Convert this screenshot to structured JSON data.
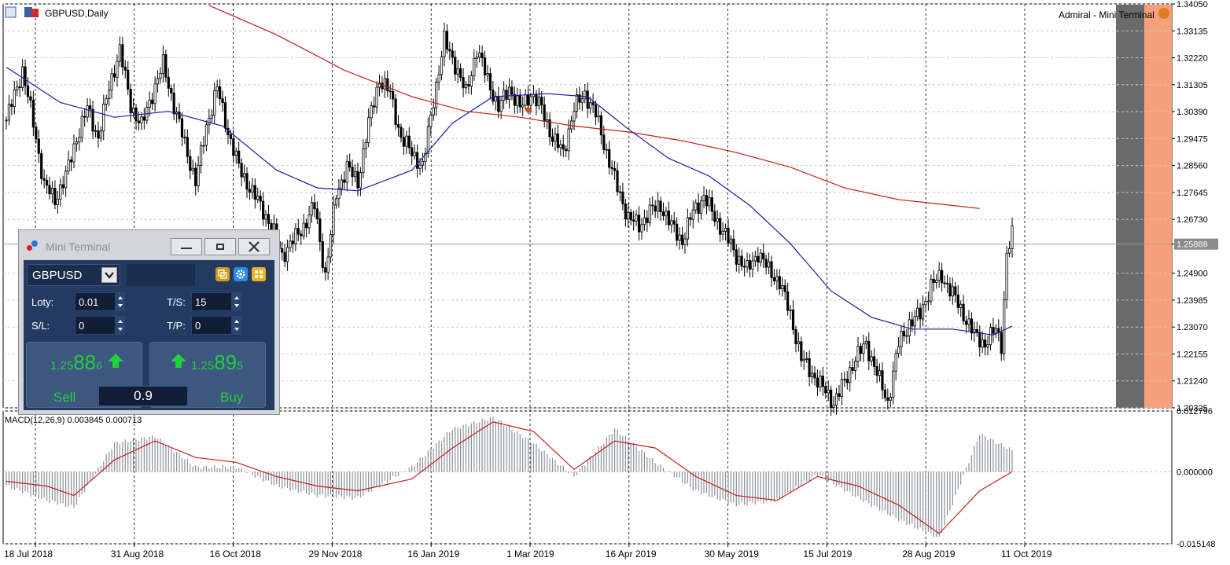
{
  "chart": {
    "symbol_title": "GBPUSD,Daily",
    "expert_label": "Admiral - Mini Terminal",
    "price_axis": [
      "1.34050",
      "1.33135",
      "1.32220",
      "1.31305",
      "1.30390",
      "1.29475",
      "1.28560",
      "1.27645",
      "1.26730",
      "1.25888",
      "1.24900",
      "1.23985",
      "1.23070",
      "1.22155",
      "1.21240",
      "1.20325"
    ],
    "current_price_label": "1.25888",
    "macd_label": "MACD(12,26,9) 0.003845 0.000713",
    "macd_axis": [
      "0.012796",
      "0.000000",
      "-0.015148"
    ],
    "date_axis": [
      "18 Jul 2018",
      "31 Aug 2018",
      "16 Oct 2018",
      "29 Nov 2018",
      "16 Jan 2019",
      "1 Mar 2019",
      "16 Apr 2019",
      "30 May 2019",
      "15 Jul 2019",
      "28 Aug 2019",
      "11 Oct 2019"
    ],
    "colors": {
      "candles": "#000000",
      "ma_fast": "#1a1aa6",
      "ma_slow": "#c41e1e",
      "macd_hist": "#8a9099",
      "macd_signal": "#c41e1e",
      "highlight_gray": "#6b6b6b",
      "highlight_orange": "#f5a07a"
    }
  },
  "chart_data": {
    "type": "candlestick",
    "x_start": "18 Jul 2018",
    "x_end": "11 Oct 2019",
    "ylim": [
      1.20325,
      1.3405
    ],
    "close_path": [
      [
        0,
        1.301
      ],
      [
        6,
        1.318
      ],
      [
        10,
        1.3
      ],
      [
        14,
        1.279
      ],
      [
        18,
        1.274
      ],
      [
        22,
        1.282
      ],
      [
        26,
        1.295
      ],
      [
        30,
        1.305
      ],
      [
        34,
        1.295
      ],
      [
        38,
        1.312
      ],
      [
        42,
        1.325
      ],
      [
        46,
        1.306
      ],
      [
        50,
        1.299
      ],
      [
        54,
        1.31
      ],
      [
        58,
        1.32
      ],
      [
        62,
        1.306
      ],
      [
        66,
        1.293
      ],
      [
        70,
        1.28
      ],
      [
        74,
        1.299
      ],
      [
        78,
        1.312
      ],
      [
        82,
        1.297
      ],
      [
        86,
        1.285
      ],
      [
        90,
        1.278
      ],
      [
        94,
        1.272
      ],
      [
        98,
        1.265
      ],
      [
        102,
        1.255
      ],
      [
        106,
        1.26
      ],
      [
        110,
        1.265
      ],
      [
        114,
        1.272
      ],
      [
        118,
        1.248
      ],
      [
        122,
        1.276
      ],
      [
        126,
        1.285
      ],
      [
        130,
        1.28
      ],
      [
        134,
        1.3
      ],
      [
        138,
        1.315
      ],
      [
        142,
        1.31
      ],
      [
        146,
        1.295
      ],
      [
        150,
        1.29
      ],
      [
        154,
        1.285
      ],
      [
        158,
        1.308
      ],
      [
        162,
        1.328
      ],
      [
        166,
        1.32
      ],
      [
        170,
        1.31
      ],
      [
        174,
        1.325
      ],
      [
        178,
        1.315
      ],
      [
        182,
        1.305
      ],
      [
        186,
        1.312
      ],
      [
        190,
        1.305
      ],
      [
        194,
        1.31
      ],
      [
        198,
        1.305
      ],
      [
        202,
        1.295
      ],
      [
        206,
        1.29
      ],
      [
        210,
        1.305
      ],
      [
        214,
        1.31
      ],
      [
        218,
        1.303
      ],
      [
        222,
        1.29
      ],
      [
        226,
        1.278
      ],
      [
        230,
        1.268
      ],
      [
        234,
        1.265
      ],
      [
        238,
        1.27
      ],
      [
        242,
        1.272
      ],
      [
        246,
        1.265
      ],
      [
        250,
        1.26
      ],
      [
        254,
        1.27
      ],
      [
        258,
        1.275
      ],
      [
        262,
        1.268
      ],
      [
        266,
        1.262
      ],
      [
        270,
        1.255
      ],
      [
        274,
        1.25
      ],
      [
        278,
        1.256
      ],
      [
        282,
        1.25
      ],
      [
        286,
        1.246
      ],
      [
        290,
        1.235
      ],
      [
        294,
        1.22
      ],
      [
        298,
        1.215
      ],
      [
        302,
        1.21
      ],
      [
        306,
        1.205
      ],
      [
        310,
        1.212
      ],
      [
        314,
        1.22
      ],
      [
        318,
        1.225
      ],
      [
        322,
        1.215
      ],
      [
        326,
        1.205
      ],
      [
        330,
        1.225
      ],
      [
        334,
        1.232
      ],
      [
        338,
        1.235
      ],
      [
        342,
        1.245
      ],
      [
        346,
        1.248
      ],
      [
        350,
        1.242
      ],
      [
        354,
        1.235
      ],
      [
        358,
        1.228
      ],
      [
        362,
        1.225
      ],
      [
        366,
        1.23
      ],
      [
        368,
        1.225
      ],
      [
        370,
        1.255
      ],
      [
        372,
        1.262
      ]
    ],
    "ma_fast_path": [
      [
        0,
        1.319
      ],
      [
        20,
        1.307
      ],
      [
        40,
        1.302
      ],
      [
        60,
        1.304
      ],
      [
        80,
        1.299
      ],
      [
        100,
        1.284
      ],
      [
        115,
        1.278
      ],
      [
        130,
        1.277
      ],
      [
        150,
        1.284
      ],
      [
        165,
        1.3
      ],
      [
        180,
        1.309
      ],
      [
        200,
        1.31
      ],
      [
        215,
        1.309
      ],
      [
        230,
        1.298
      ],
      [
        245,
        1.288
      ],
      [
        260,
        1.282
      ],
      [
        275,
        1.272
      ],
      [
        290,
        1.259
      ],
      [
        305,
        1.243
      ],
      [
        320,
        1.234
      ],
      [
        335,
        1.23
      ],
      [
        350,
        1.23
      ],
      [
        365,
        1.228
      ],
      [
        372,
        1.231
      ]
    ],
    "ma_slow_path": [
      [
        75,
        1.34
      ],
      [
        100,
        1.33
      ],
      [
        125,
        1.318
      ],
      [
        150,
        1.309
      ],
      [
        170,
        1.304
      ],
      [
        190,
        1.302
      ],
      [
        210,
        1.299
      ],
      [
        230,
        1.297
      ],
      [
        250,
        1.294
      ],
      [
        270,
        1.29
      ],
      [
        290,
        1.285
      ],
      [
        310,
        1.278
      ],
      [
        330,
        1.274
      ],
      [
        350,
        1.272
      ],
      [
        360,
        1.271
      ]
    ],
    "macd_signal_path": [
      [
        0,
        -0.002
      ],
      [
        15,
        -0.003
      ],
      [
        25,
        -0.005
      ],
      [
        40,
        0.0025
      ],
      [
        55,
        0.0065
      ],
      [
        70,
        0.003
      ],
      [
        85,
        0.002
      ],
      [
        100,
        -0.001
      ],
      [
        115,
        -0.003
      ],
      [
        130,
        -0.004
      ],
      [
        150,
        -0.0015
      ],
      [
        165,
        0.005
      ],
      [
        180,
        0.0105
      ],
      [
        195,
        0.0085
      ],
      [
        210,
        0.0005
      ],
      [
        225,
        0.0065
      ],
      [
        240,
        0.005
      ],
      [
        255,
        -0.001
      ],
      [
        270,
        -0.005
      ],
      [
        285,
        -0.006
      ],
      [
        300,
        -0.001
      ],
      [
        315,
        -0.003
      ],
      [
        330,
        -0.007
      ],
      [
        345,
        -0.013
      ],
      [
        360,
        -0.004
      ],
      [
        372,
        0.0
      ]
    ],
    "macd_hist_path": [
      [
        0,
        -0.003
      ],
      [
        15,
        -0.006
      ],
      [
        25,
        -0.0075
      ],
      [
        40,
        0.006
      ],
      [
        55,
        0.0075
      ],
      [
        70,
        0.001
      ],
      [
        85,
        0.001
      ],
      [
        100,
        -0.003
      ],
      [
        115,
        -0.005
      ],
      [
        130,
        -0.0055
      ],
      [
        150,
        0.001
      ],
      [
        165,
        0.009
      ],
      [
        180,
        0.0115
      ],
      [
        195,
        0.006
      ],
      [
        210,
        -0.001
      ],
      [
        225,
        0.009
      ],
      [
        240,
        0.002
      ],
      [
        255,
        -0.004
      ],
      [
        270,
        -0.007
      ],
      [
        285,
        -0.006
      ],
      [
        300,
        -0.0005
      ],
      [
        315,
        -0.0055
      ],
      [
        330,
        -0.01
      ],
      [
        345,
        -0.014
      ],
      [
        360,
        0.008
      ],
      [
        372,
        0.0045
      ]
    ]
  },
  "mini_terminal": {
    "title": "Mini Terminal",
    "symbol": "GBPUSD",
    "lots_label": "Loty:",
    "lots_value": "0.01",
    "ts_label": "T/S:",
    "ts_value": "15",
    "sl_label": "S/L:",
    "sl_value": "0",
    "tp_label": "T/P:",
    "tp_value": "0",
    "sell_price_small": "1.25",
    "sell_price_big": "88",
    "sell_price_tiny": "6",
    "buy_price_small": "1.25",
    "buy_price_big": "89",
    "buy_price_tiny": "5",
    "sell_label": "Sell",
    "buy_label": "Buy",
    "spread": "0.9"
  }
}
